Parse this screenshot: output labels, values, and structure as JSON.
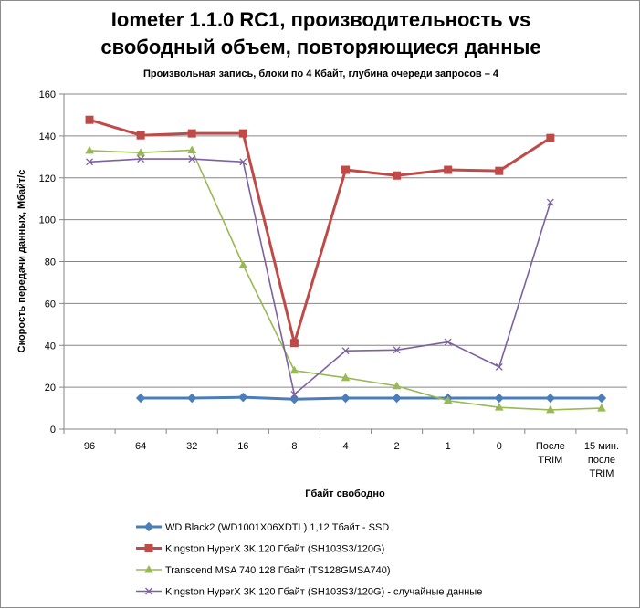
{
  "chart_data": {
    "type": "line",
    "title_lines": [
      "Iometer 1.1.0 RC1, производительность vs",
      "свободный объем, повторяющиеся данные"
    ],
    "subtitle": "Произвольная  запись, блоки по 4 Кбайт, глубина очереди запросов – 4",
    "xlabel": "Гбайт свободно",
    "ylabel": "Скорость передачи данных, Мбайт/с",
    "categories": [
      [
        "96"
      ],
      [
        "64"
      ],
      [
        "32"
      ],
      [
        "16"
      ],
      [
        "8"
      ],
      [
        "4"
      ],
      [
        "2"
      ],
      [
        "1"
      ],
      [
        "0"
      ],
      [
        "После",
        "TRIM"
      ],
      [
        "15 мин.",
        "после",
        "TRIM"
      ]
    ],
    "ylim": [
      0,
      160
    ],
    "yticks": [
      0,
      20,
      40,
      60,
      80,
      100,
      120,
      140,
      160
    ],
    "grid": true,
    "legend_position": "bottom",
    "series": [
      {
        "name": "WD Black2 (WD1001X06XDTL) 1,12 Тбайт - SSD",
        "color": "#4a7ebb",
        "marker": "diamond",
        "width": 3,
        "values": [
          null,
          14.8,
          14.8,
          15.2,
          14.3,
          14.8,
          14.8,
          14.8,
          14.8,
          14.8,
          14.8
        ]
      },
      {
        "name": "Kingston HyperX 3K 120 Гбайт (SH103S3/120G)",
        "color": "#be4b48",
        "marker": "square",
        "width": 3,
        "values": [
          147.7,
          140.3,
          141.2,
          141.2,
          41.1,
          123.8,
          121.1,
          123.8,
          123.3,
          139,
          null
        ]
      },
      {
        "name": "Transcend MSA 740 128 Гбайт (TS128GMSA740)",
        "color": "#98b954",
        "marker": "triangle",
        "width": 1.6,
        "values": [
          133,
          132,
          133.2,
          78.3,
          28,
          24.5,
          20.6,
          13.6,
          10.4,
          9.2,
          10
        ]
      },
      {
        "name": "Kingston HyperX 3K 120 Гбайт (SH103S3/120G) - случайные данные",
        "color": "#7d60a0",
        "marker": "x",
        "width": 1.6,
        "values": [
          127.6,
          129,
          129,
          127.6,
          16.6,
          37.4,
          37.8,
          41.6,
          29.7,
          108.3,
          null
        ]
      }
    ]
  }
}
